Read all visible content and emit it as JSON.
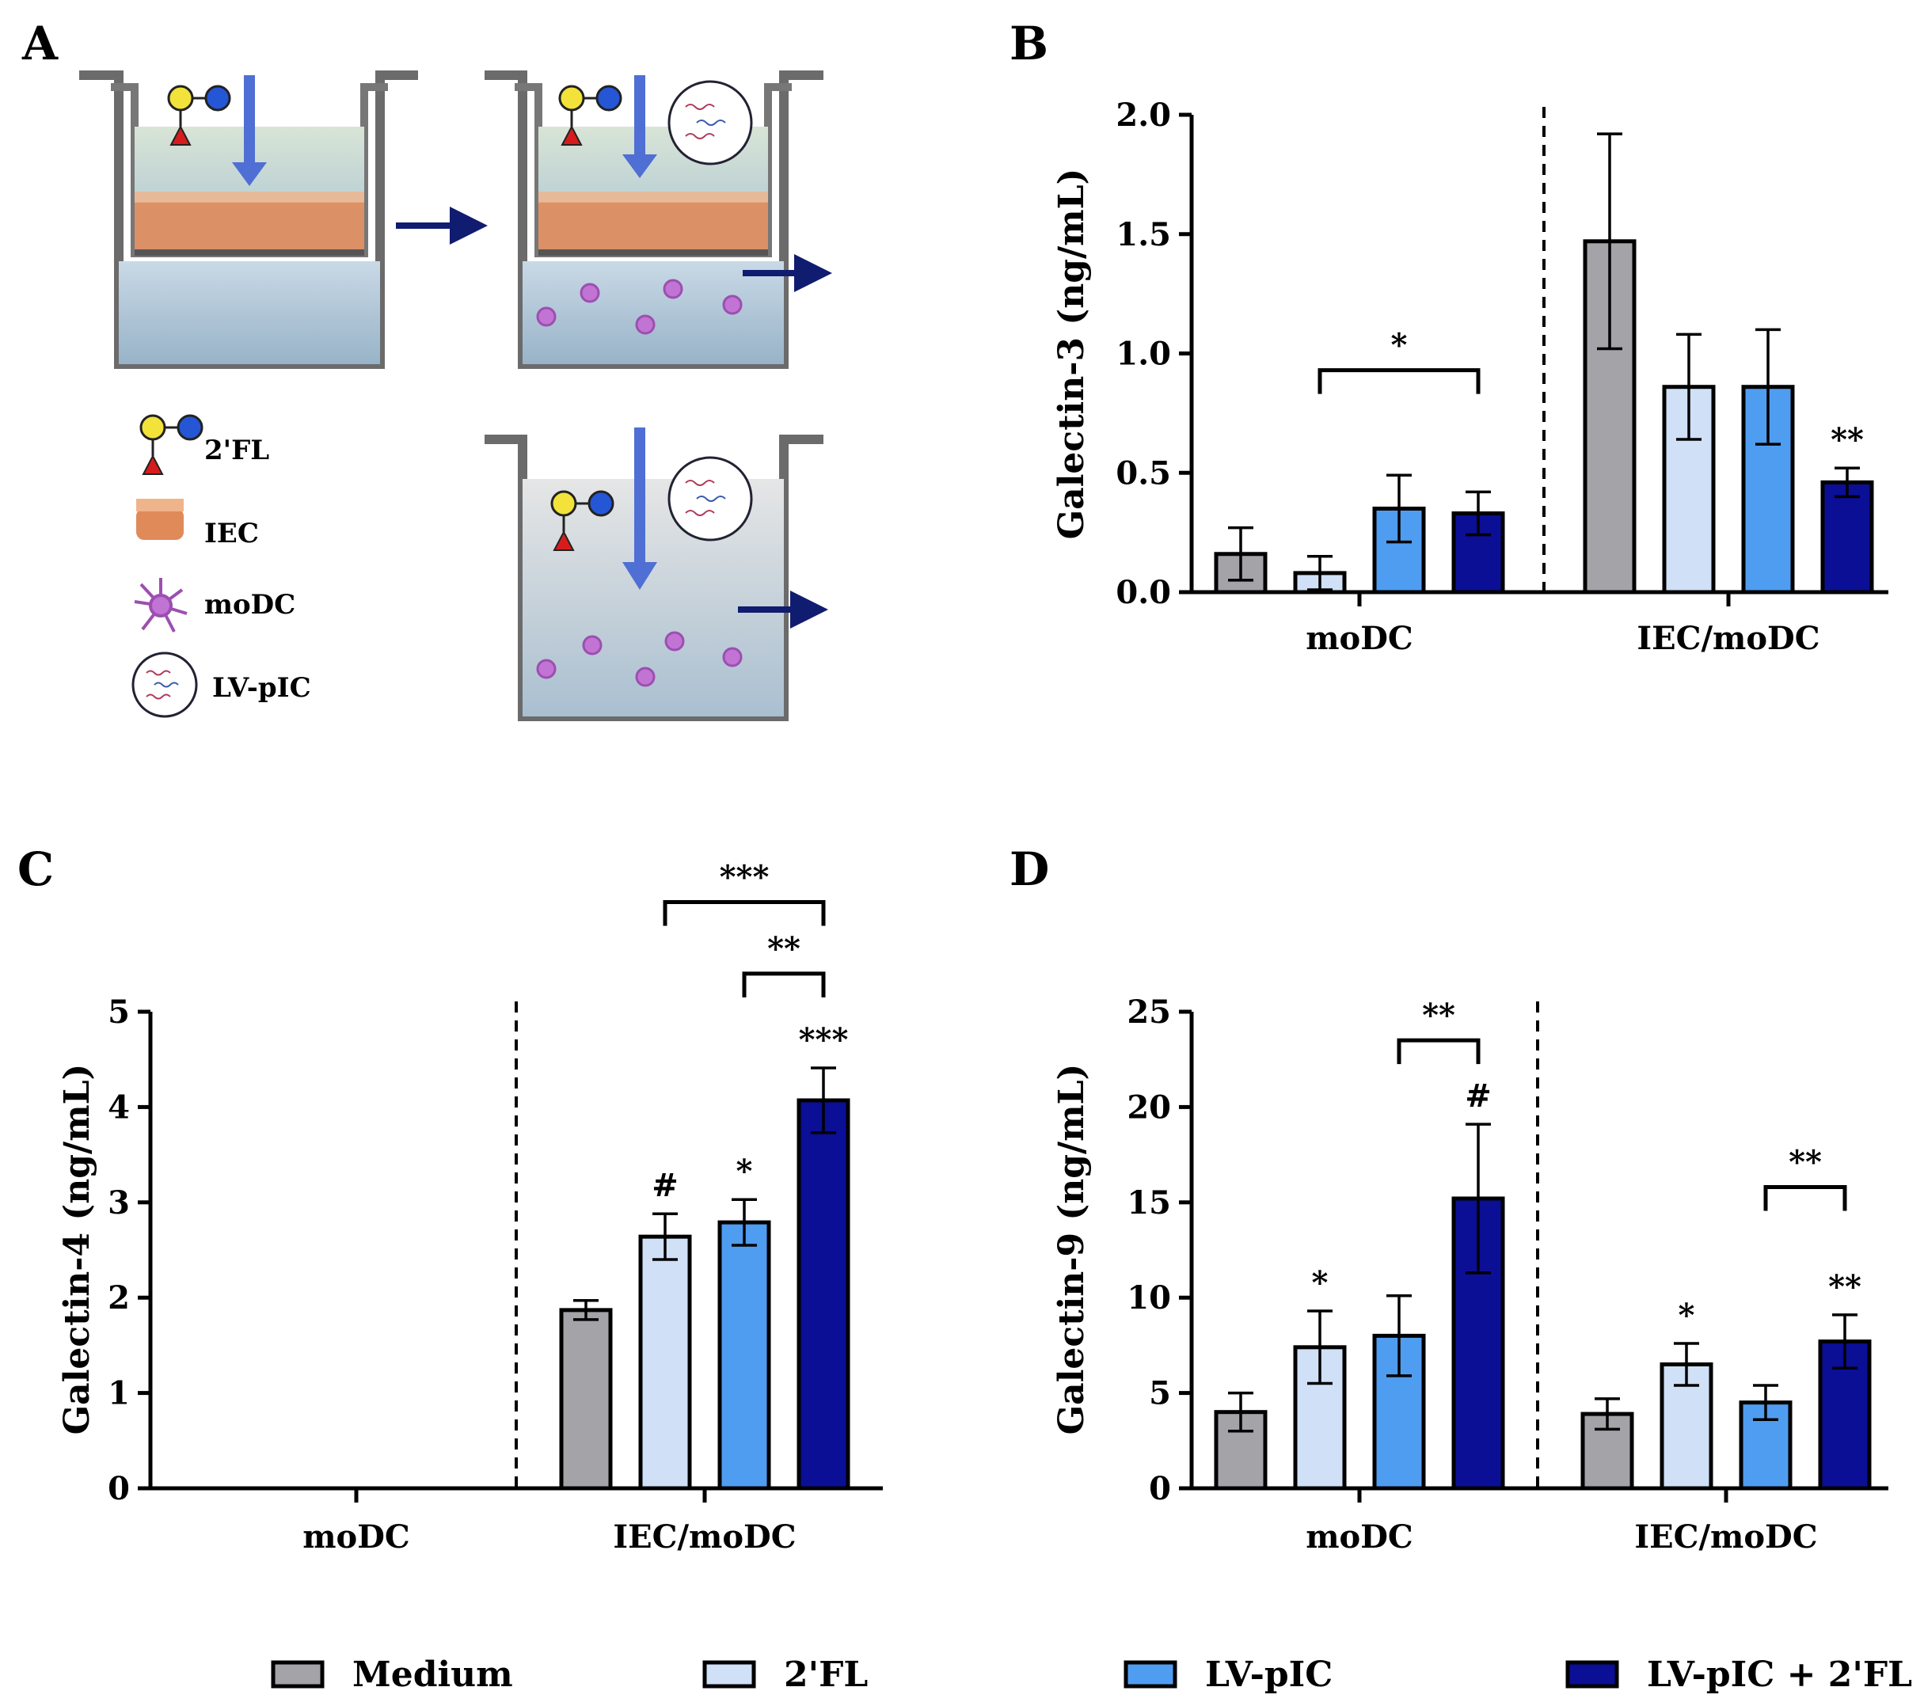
{
  "panels": {
    "a": "A",
    "b": "B",
    "c": "C",
    "d": "D"
  },
  "schematic_legend": {
    "fl": "2'FL",
    "iec": "IEC",
    "modc": "moDC",
    "lvpic": "LV-pIC"
  },
  "colors": {
    "medium": "#a3a3a8",
    "fl": "#cfe0f7",
    "lvpic": "#4f9df0",
    "combo": "#0a0f96",
    "medium_fluid": "#cfdfe0",
    "epithelium": "#e08a5a",
    "modc_cell": "#c274d4",
    "arrow": "#4f6fd4",
    "dark_arrow": "#101c70",
    "insert_wall": "#6b6b6b"
  },
  "legend": [
    {
      "label": "Medium",
      "color": "#a3a3a8"
    },
    {
      "label": "2'FL",
      "color": "#cfe0f7"
    },
    {
      "label": "LV-pIC",
      "color": "#4f9df0"
    },
    {
      "label": "LV-pIC + 2'FL",
      "color": "#0a0f96"
    }
  ],
  "chart_data": [
    {
      "panel": "B",
      "type": "bar",
      "ylabel": "Galectin-3 (ng/mL)",
      "ylim": [
        0,
        2.0
      ],
      "yticks": [
        "0.0",
        "0.5",
        "1.0",
        "1.5",
        "2.0"
      ],
      "ytick_values": [
        0,
        0.5,
        1.0,
        1.5,
        2.0
      ],
      "categories": [
        "moDC",
        "IEC/moDC"
      ],
      "series": [
        {
          "name": "Medium",
          "values": [
            0.16,
            1.47
          ],
          "errors": [
            0.11,
            0.45
          ]
        },
        {
          "name": "2'FL",
          "values": [
            0.08,
            0.86
          ],
          "errors": [
            0.07,
            0.22
          ]
        },
        {
          "name": "LV-pIC",
          "values": [
            0.35,
            0.86
          ],
          "errors": [
            0.14,
            0.24
          ]
        },
        {
          "name": "LV-pIC + 2'FL",
          "values": [
            0.33,
            0.46
          ],
          "errors": [
            0.09,
            0.06
          ]
        }
      ],
      "annotations": [
        {
          "text": "*",
          "type": "bracket",
          "group": 0,
          "from": 1,
          "to": 3,
          "level": 0.93
        },
        {
          "text": "**",
          "type": "mark",
          "group": 1,
          "bar": 3
        }
      ]
    },
    {
      "panel": "C",
      "type": "bar",
      "ylabel": "Galectin-4 (ng/mL)",
      "ylim": [
        0,
        5
      ],
      "yticks": [
        "0",
        "1",
        "2",
        "3",
        "4",
        "5"
      ],
      "ytick_values": [
        0,
        1,
        2,
        3,
        4,
        5
      ],
      "categories": [
        "moDC",
        "IEC/moDC"
      ],
      "series": [
        {
          "name": "Medium",
          "values": [
            null,
            1.87
          ],
          "errors": [
            null,
            0.1
          ]
        },
        {
          "name": "2'FL",
          "values": [
            null,
            2.64
          ],
          "errors": [
            null,
            0.24
          ]
        },
        {
          "name": "LV-pIC",
          "values": [
            null,
            2.79
          ],
          "errors": [
            null,
            0.24
          ]
        },
        {
          "name": "LV-pIC + 2'FL",
          "values": [
            null,
            4.07
          ],
          "errors": [
            null,
            0.34
          ]
        }
      ],
      "annotations": [
        {
          "text": "#",
          "type": "mark",
          "group": 1,
          "bar": 1
        },
        {
          "text": "*",
          "type": "mark",
          "group": 1,
          "bar": 2
        },
        {
          "text": "***",
          "type": "mark",
          "group": 1,
          "bar": 3
        },
        {
          "text": "**",
          "type": "bracket",
          "group": 1,
          "from": 2,
          "to": 3,
          "level": 5.4
        },
        {
          "text": "***",
          "type": "bracket",
          "group": 1,
          "from": 1,
          "to": 3,
          "level": 6.15
        }
      ]
    },
    {
      "panel": "D",
      "type": "bar",
      "ylabel": "Galectin-9 (ng/mL)",
      "ylim": [
        0,
        25
      ],
      "yticks": [
        "0",
        "5",
        "10",
        "15",
        "20",
        "25"
      ],
      "ytick_values": [
        0,
        5,
        10,
        15,
        20,
        25
      ],
      "categories": [
        "moDC",
        "IEC/moDC"
      ],
      "series": [
        {
          "name": "Medium",
          "values": [
            4.0,
            3.9
          ],
          "errors": [
            1.0,
            0.8
          ]
        },
        {
          "name": "2'FL",
          "values": [
            7.4,
            6.5
          ],
          "errors": [
            1.9,
            1.1
          ]
        },
        {
          "name": "LV-pIC",
          "values": [
            8.0,
            4.5
          ],
          "errors": [
            2.1,
            0.9
          ]
        },
        {
          "name": "LV-pIC + 2'FL",
          "values": [
            15.2,
            7.7
          ],
          "errors": [
            3.9,
            1.4
          ]
        }
      ],
      "annotations": [
        {
          "text": "*",
          "type": "mark",
          "group": 0,
          "bar": 1
        },
        {
          "text": "#",
          "type": "mark",
          "group": 0,
          "bar": 3
        },
        {
          "text": "**",
          "type": "bracket",
          "group": 0,
          "from": 2,
          "to": 3,
          "level": 23.5
        },
        {
          "text": "*",
          "type": "mark",
          "group": 1,
          "bar": 1
        },
        {
          "text": "**",
          "type": "mark",
          "group": 1,
          "bar": 3
        },
        {
          "text": "**",
          "type": "bracket",
          "group": 1,
          "from": 2,
          "to": 3,
          "level": 15.8
        }
      ]
    }
  ]
}
